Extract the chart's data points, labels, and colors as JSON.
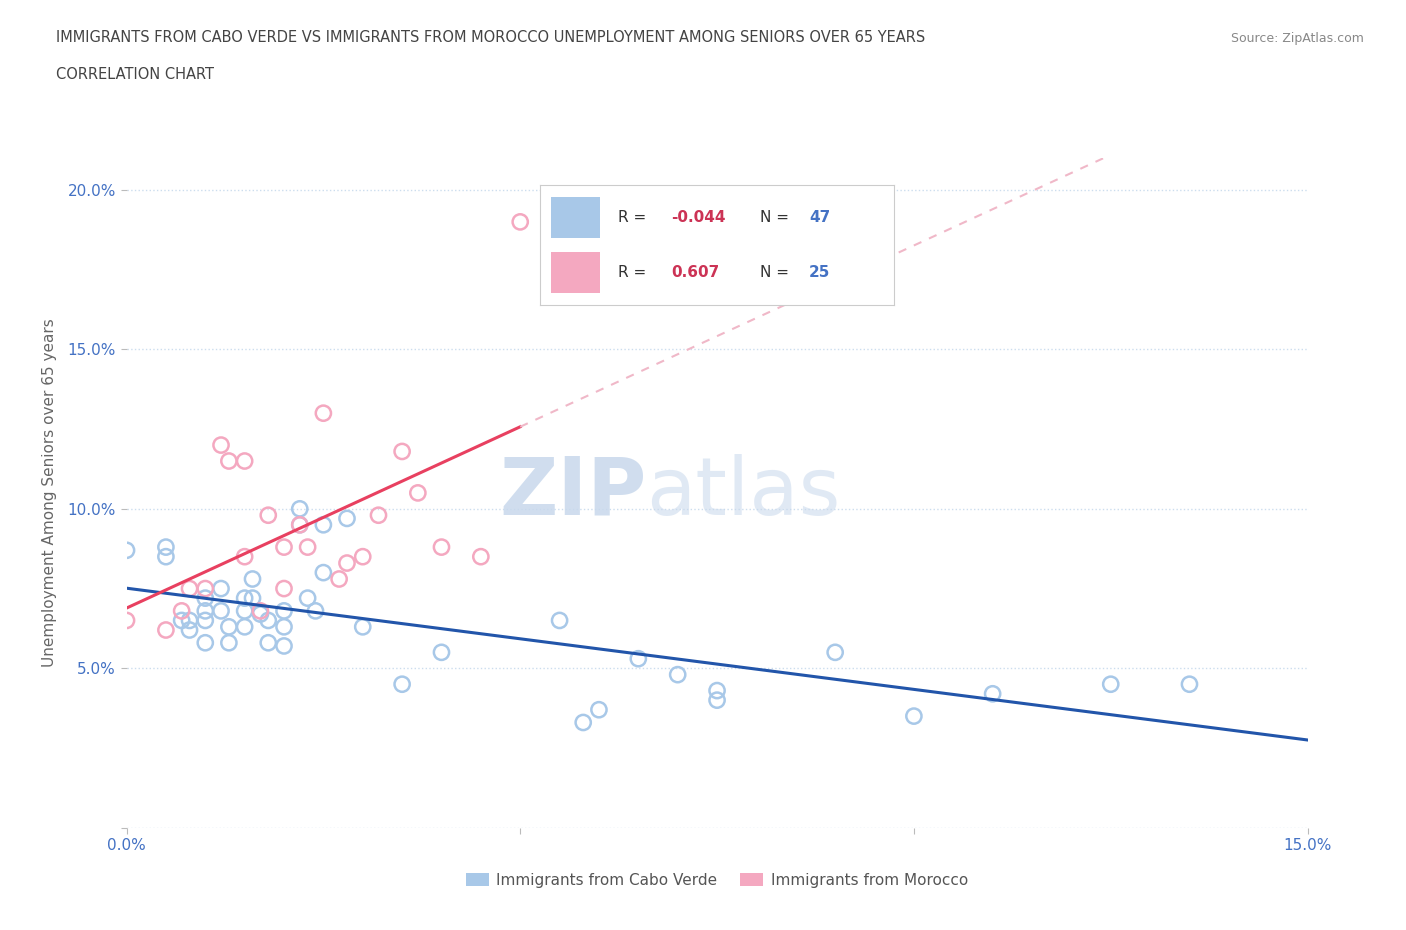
{
  "title_line1": "IMMIGRANTS FROM CABO VERDE VS IMMIGRANTS FROM MOROCCO UNEMPLOYMENT AMONG SENIORS OVER 65 YEARS",
  "title_line2": "CORRELATION CHART",
  "source": "Source: ZipAtlas.com",
  "ylabel": "Unemployment Among Seniors over 65 years",
  "xlim": [
    0.0,
    0.15
  ],
  "ylim": [
    0.0,
    0.21
  ],
  "watermark_zip": "ZIP",
  "watermark_atlas": "atlas",
  "cabo_verde_color": "#a8c8e8",
  "morocco_color": "#f4a8c0",
  "cabo_verde_line_color": "#2255aa",
  "morocco_line_color": "#e84060",
  "morocco_trend_dashed_color": "#f0b8c8",
  "R_cabo": -0.044,
  "N_cabo": 47,
  "R_morocco": 0.607,
  "N_morocco": 25,
  "cabo_verde_x": [
    0.0,
    0.005,
    0.005,
    0.007,
    0.008,
    0.008,
    0.01,
    0.01,
    0.01,
    0.01,
    0.012,
    0.012,
    0.013,
    0.013,
    0.015,
    0.015,
    0.015,
    0.016,
    0.016,
    0.017,
    0.018,
    0.018,
    0.02,
    0.02,
    0.02,
    0.022,
    0.022,
    0.023,
    0.024,
    0.025,
    0.025,
    0.028,
    0.03,
    0.035,
    0.04,
    0.055,
    0.058,
    0.06,
    0.065,
    0.07,
    0.075,
    0.075,
    0.09,
    0.1,
    0.11,
    0.125,
    0.135
  ],
  "cabo_verde_y": [
    0.087,
    0.088,
    0.085,
    0.065,
    0.065,
    0.062,
    0.072,
    0.068,
    0.065,
    0.058,
    0.075,
    0.068,
    0.063,
    0.058,
    0.072,
    0.068,
    0.063,
    0.078,
    0.072,
    0.067,
    0.065,
    0.058,
    0.068,
    0.063,
    0.057,
    0.1,
    0.095,
    0.072,
    0.068,
    0.08,
    0.095,
    0.097,
    0.063,
    0.045,
    0.055,
    0.065,
    0.033,
    0.037,
    0.053,
    0.048,
    0.043,
    0.04,
    0.055,
    0.035,
    0.042,
    0.045,
    0.045
  ],
  "morocco_x": [
    0.0,
    0.005,
    0.007,
    0.008,
    0.01,
    0.012,
    0.013,
    0.015,
    0.015,
    0.017,
    0.018,
    0.02,
    0.02,
    0.022,
    0.023,
    0.025,
    0.027,
    0.028,
    0.03,
    0.032,
    0.035,
    0.037,
    0.04,
    0.045,
    0.05
  ],
  "morocco_y": [
    0.065,
    0.062,
    0.068,
    0.075,
    0.075,
    0.12,
    0.115,
    0.085,
    0.115,
    0.068,
    0.098,
    0.088,
    0.075,
    0.095,
    0.088,
    0.13,
    0.078,
    0.083,
    0.085,
    0.098,
    0.118,
    0.105,
    0.088,
    0.085,
    0.19
  ],
  "title_color": "#555555",
  "axis_color": "#4472c4",
  "grid_color": "#ccddee",
  "legend_R_color": "#cc3355",
  "legend_N_color": "#4472c4",
  "background_color": "#ffffff"
}
